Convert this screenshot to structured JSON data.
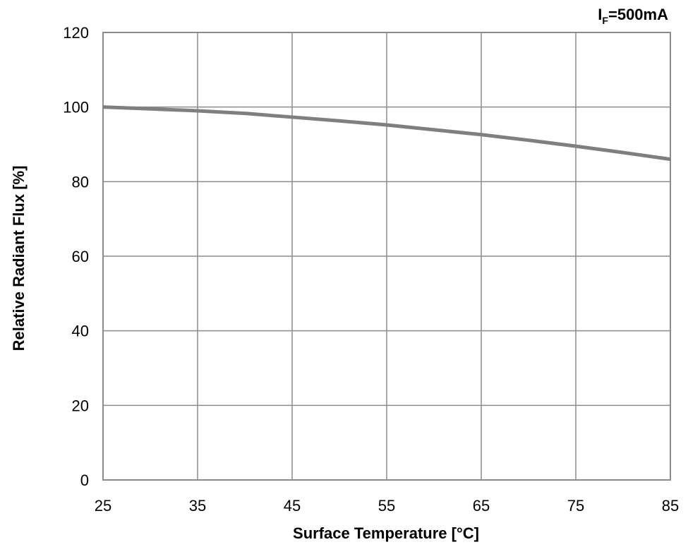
{
  "chart_data": {
    "type": "line",
    "title": "",
    "xlabel": "Surface Temperature [°C]",
    "ylabel": "Relative Radiant Flux [%]",
    "condition": {
      "main": "I",
      "subscript": "F",
      "value": "=500mA"
    },
    "xlim": [
      25,
      85
    ],
    "ylim": [
      0,
      120
    ],
    "x_ticks": [
      25,
      35,
      45,
      55,
      65,
      75,
      85
    ],
    "y_ticks": [
      0,
      20,
      40,
      60,
      80,
      100,
      120
    ],
    "grid": true,
    "series": [
      {
        "color": "#7f7f7f",
        "x": [
          25,
          30,
          35,
          40,
          45,
          50,
          55,
          60,
          65,
          70,
          75,
          80,
          85
        ],
        "y": [
          100,
          99.5,
          99,
          98.3,
          97.3,
          96.3,
          95.2,
          93.9,
          92.6,
          91.1,
          89.5,
          87.8,
          86
        ]
      }
    ]
  }
}
